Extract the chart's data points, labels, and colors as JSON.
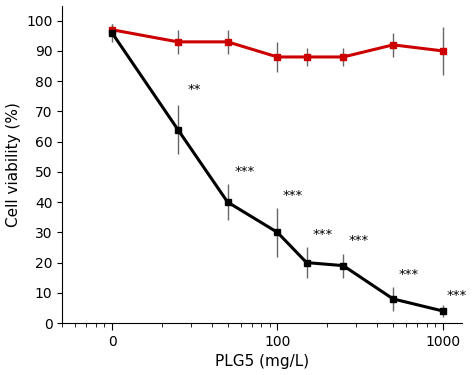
{
  "x_values": [
    10,
    25,
    50,
    100,
    150,
    250,
    500,
    1000
  ],
  "black_y": [
    96,
    64,
    40,
    30,
    20,
    19,
    8,
    4
  ],
  "black_yerr": [
    3,
    8,
    6,
    8,
    5,
    4,
    4,
    2
  ],
  "red_y": [
    97,
    93,
    93,
    88,
    88,
    88,
    92,
    90
  ],
  "red_yerr": [
    2,
    4,
    4,
    5,
    3,
    3,
    4,
    8
  ],
  "black_annotations": [
    null,
    "**",
    "***",
    "***",
    "***",
    "***",
    "***",
    "***"
  ],
  "xlabel": "PLG5 (mg/L)",
  "ylabel": "Cell viability (%)",
  "xlim": [
    5,
    1300
  ],
  "ylim": [
    0,
    105
  ],
  "yticks": [
    0,
    10,
    20,
    30,
    40,
    50,
    60,
    70,
    80,
    90,
    100
  ],
  "xtick_labels": [
    "0",
    "100",
    "1000"
  ],
  "xtick_positions": [
    10,
    100,
    1000
  ],
  "black_color": "#000000",
  "red_color": "#cc0000",
  "marker_size": 5,
  "linewidth": 2.2,
  "annot_fontsize": 9.5,
  "annot_offsets": [
    [
      null,
      null
    ],
    [
      1.15,
      3
    ],
    [
      1.1,
      2
    ],
    [
      1.08,
      2
    ],
    [
      1.08,
      2
    ],
    [
      1.08,
      2
    ],
    [
      1.08,
      2
    ],
    [
      1.06,
      1
    ]
  ]
}
